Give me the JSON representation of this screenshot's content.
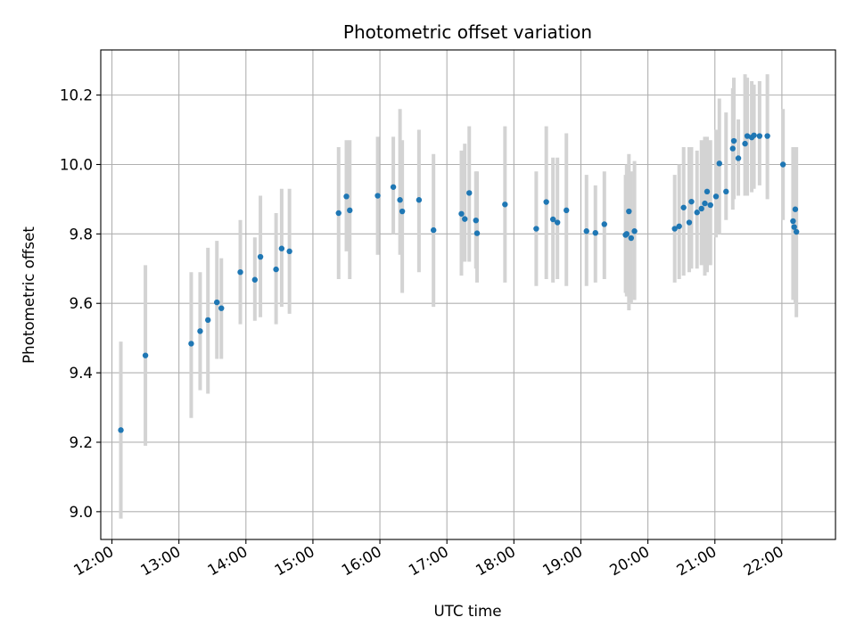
{
  "chart_data": {
    "type": "scatter",
    "title": "Photometric offset variation",
    "xlabel": "UTC time",
    "ylabel": "Photometric offset",
    "x_ticks": [
      "12:00",
      "13:00",
      "14:00",
      "15:00",
      "16:00",
      "17:00",
      "18:00",
      "19:00",
      "20:00",
      "21:00",
      "22:00"
    ],
    "y_ticks": [
      "9.0",
      "9.2",
      "9.4",
      "9.6",
      "9.8",
      "10.0",
      "10.2"
    ],
    "xlim": [
      "11:50",
      "22:48"
    ],
    "ylim": [
      8.92,
      10.33
    ],
    "grid": true,
    "colors": {
      "point": "#1f77b4",
      "errorbar": "#d3d3d3",
      "grid": "#b0b0b0"
    },
    "series": [
      {
        "x": [
          "12:08",
          "12:30",
          "13:11",
          "13:19",
          "13:26",
          "13:34",
          "13:38",
          "13:55",
          "14:08",
          "14:13",
          "14:27",
          "14:32",
          "14:39",
          "15:23",
          "15:30",
          "15:33",
          "15:58",
          "16:12",
          "16:18",
          "16:20",
          "16:35",
          "16:48",
          "17:13",
          "17:16",
          "17:20",
          "17:26",
          "17:27",
          "17:52",
          "18:20",
          "18:29",
          "18:35",
          "18:39",
          "18:47",
          "19:05",
          "19:13",
          "19:21",
          "19:40",
          "19:41",
          "19:43",
          "19:45",
          "19:48",
          "20:24",
          "20:28",
          "20:32",
          "20:37",
          "20:39",
          "20:44",
          "20:48",
          "20:51",
          "20:53",
          "20:56",
          "21:01",
          "21:04",
          "21:10",
          "21:16",
          "21:17",
          "21:21",
          "21:27",
          "21:29",
          "21:33",
          "21:35",
          "21:40",
          "21:47",
          "22:01",
          "22:10",
          "22:11",
          "22:12",
          "22:13"
        ],
        "y": [
          9.235,
          9.45,
          9.484,
          9.52,
          9.552,
          9.603,
          9.586,
          9.69,
          9.668,
          9.734,
          9.698,
          9.758,
          9.75,
          9.86,
          9.908,
          9.868,
          9.91,
          9.935,
          9.898,
          9.865,
          9.898,
          9.811,
          9.858,
          9.843,
          9.918,
          9.839,
          9.802,
          9.885,
          9.815,
          9.892,
          9.842,
          9.833,
          9.868,
          9.808,
          9.803,
          9.828,
          9.797,
          9.8,
          9.865,
          9.788,
          9.808,
          9.815,
          9.822,
          9.876,
          9.833,
          9.893,
          9.862,
          9.873,
          9.888,
          9.922,
          9.883,
          9.908,
          10.003,
          9.922,
          10.046,
          10.068,
          10.018,
          10.06,
          10.082,
          10.078,
          10.084,
          10.082,
          10.082,
          10.0,
          9.837,
          9.82,
          9.871,
          9.806
        ],
        "err_low": [
          8.98,
          9.19,
          9.27,
          9.35,
          9.34,
          9.44,
          9.44,
          9.54,
          9.55,
          9.56,
          9.54,
          9.59,
          9.57,
          9.67,
          9.75,
          9.67,
          9.74,
          9.8,
          9.74,
          9.63,
          9.69,
          9.59,
          9.68,
          9.72,
          9.72,
          9.7,
          9.66,
          9.66,
          9.65,
          9.67,
          9.66,
          9.67,
          9.65,
          9.65,
          9.66,
          9.67,
          9.63,
          9.62,
          9.58,
          9.6,
          9.61,
          9.66,
          9.67,
          9.68,
          9.69,
          9.7,
          9.7,
          9.71,
          9.68,
          9.69,
          9.71,
          9.79,
          9.8,
          9.84,
          9.87,
          9.9,
          9.91,
          9.91,
          9.91,
          9.92,
          9.93,
          9.94,
          9.9,
          9.84,
          9.61,
          9.62,
          9.6,
          9.56
        ],
        "err_high": [
          9.49,
          9.71,
          9.69,
          9.69,
          9.76,
          9.78,
          9.73,
          9.84,
          9.79,
          9.91,
          9.86,
          9.93,
          9.93,
          10.05,
          10.07,
          10.07,
          10.08,
          10.08,
          10.16,
          10.07,
          10.1,
          10.03,
          10.04,
          10.06,
          10.11,
          9.98,
          9.98,
          10.11,
          9.98,
          10.11,
          10.02,
          10.02,
          10.09,
          9.97,
          9.94,
          9.98,
          9.97,
          10.0,
          10.03,
          9.98,
          10.01,
          9.97,
          10.0,
          10.05,
          10.05,
          10.05,
          10.04,
          10.07,
          10.08,
          10.08,
          10.07,
          10.1,
          10.19,
          10.15,
          10.22,
          10.25,
          10.13,
          10.26,
          10.25,
          10.24,
          10.23,
          10.24,
          10.26,
          10.16,
          10.05,
          10.03,
          10.04,
          10.05
        ]
      }
    ]
  }
}
